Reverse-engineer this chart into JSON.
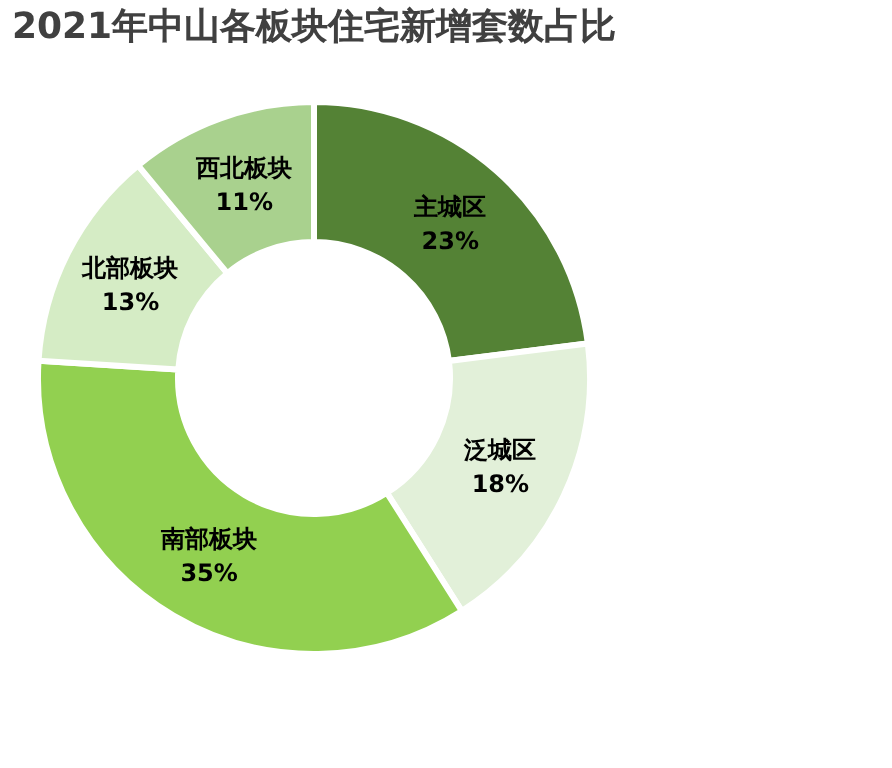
{
  "chart_data": {
    "type": "donut",
    "title": "2021年中山各板块住宅新增套数占比",
    "categories": [
      "主城区",
      "泛城区",
      "南部板块",
      "北部板块",
      "西北板块"
    ],
    "values": [
      23,
      18,
      35,
      13,
      11
    ],
    "value_labels": [
      "23%",
      "18%",
      "35%",
      "13%",
      "11%"
    ],
    "colors": [
      "#548235",
      "#e2f0d9",
      "#92d050",
      "#d5ecc5",
      "#a9d18e"
    ],
    "legend": false
  }
}
